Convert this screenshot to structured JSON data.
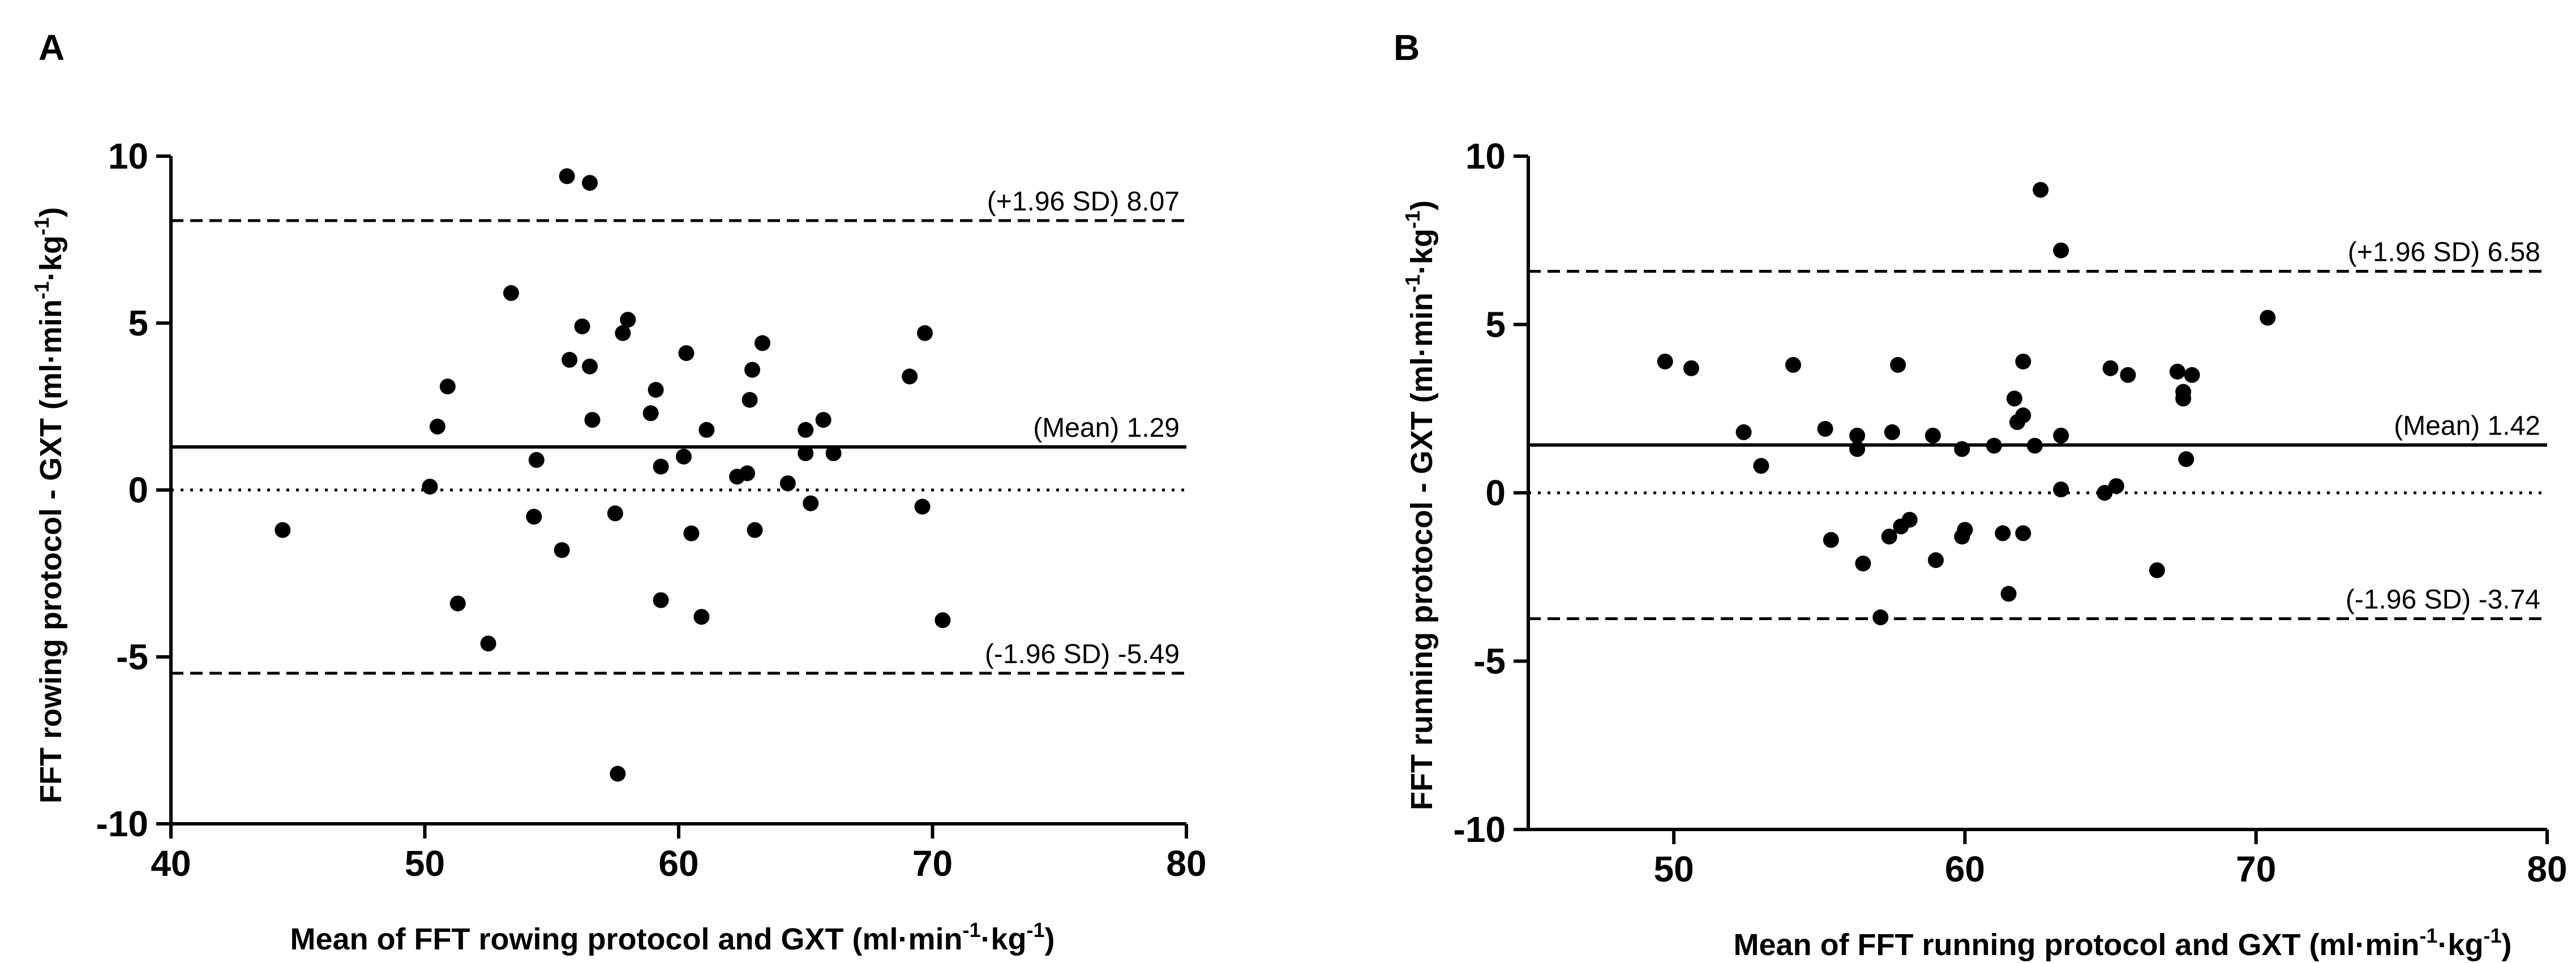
{
  "chart_data": [
    {
      "type": "scatter",
      "panel": "A",
      "xlabel": "Mean of FFT rowing protocol and GXT (ml·min-1·kg-1)",
      "xlabel_parts": [
        "Mean of FFT rowing protocol and GXT (ml·min",
        "-1",
        "·kg",
        "-1",
        ")"
      ],
      "ylabel": "FFT rowing protocol - GXT (ml·min-1·kg-1)",
      "ylabel_parts": [
        "FFT rowing protocol - GXT (ml·min",
        "-1",
        "·kg",
        "-1",
        ")"
      ],
      "xlim": [
        40,
        80
      ],
      "ylim": [
        -10,
        10
      ],
      "xticks": [
        40,
        50,
        60,
        70,
        80
      ],
      "yticks": [
        10,
        5,
        0,
        -5,
        -10
      ],
      "ytick_labels": [
        "10",
        "5",
        "0",
        "-5",
        "-10"
      ],
      "reference_lines": [
        {
          "kind": "upper-loa",
          "style": "dashed",
          "y": 8.07,
          "label": "(+1.96 SD) 8.07"
        },
        {
          "kind": "mean",
          "style": "solid",
          "y": 1.29,
          "label": "(Mean) 1.29"
        },
        {
          "kind": "zero",
          "style": "dotted",
          "y": 0,
          "label": ""
        },
        {
          "kind": "lower-loa",
          "style": "dashed",
          "y": -5.49,
          "label": "(-1.96 SD) -5.49"
        }
      ],
      "points": [
        [
          44.4,
          -1.2
        ],
        [
          50.2,
          0.1
        ],
        [
          50.5,
          1.9
        ],
        [
          50.9,
          3.1
        ],
        [
          51.3,
          -3.4
        ],
        [
          52.5,
          -4.6
        ],
        [
          53.4,
          5.9
        ],
        [
          54.3,
          -0.8
        ],
        [
          54.4,
          0.9
        ],
        [
          55.4,
          -1.8
        ],
        [
          55.6,
          9.4
        ],
        [
          55.7,
          3.9
        ],
        [
          56.2,
          4.9
        ],
        [
          56.5,
          3.7
        ],
        [
          56.5,
          9.2
        ],
        [
          56.6,
          2.1
        ],
        [
          57.5,
          -0.7
        ],
        [
          57.6,
          -8.5
        ],
        [
          57.8,
          4.7
        ],
        [
          58.0,
          5.1
        ],
        [
          58.9,
          2.3
        ],
        [
          59.1,
          3.0
        ],
        [
          59.3,
          -3.3
        ],
        [
          59.3,
          0.7
        ],
        [
          60.2,
          1.0
        ],
        [
          60.3,
          4.1
        ],
        [
          60.5,
          -1.3
        ],
        [
          60.9,
          -3.8
        ],
        [
          61.1,
          1.8
        ],
        [
          62.3,
          0.4
        ],
        [
          62.7,
          0.5
        ],
        [
          62.8,
          2.7
        ],
        [
          62.9,
          3.6
        ],
        [
          63.0,
          -1.2
        ],
        [
          63.3,
          4.4
        ],
        [
          64.3,
          0.2
        ],
        [
          65.0,
          1.1
        ],
        [
          65.0,
          1.8
        ],
        [
          65.2,
          -0.4
        ],
        [
          65.7,
          2.1
        ],
        [
          66.1,
          1.1
        ],
        [
          69.1,
          3.4
        ],
        [
          69.6,
          -0.5
        ],
        [
          69.7,
          4.7
        ],
        [
          70.4,
          -3.9
        ]
      ]
    },
    {
      "type": "scatter",
      "panel": "B",
      "xlabel": "Mean of FFT running protocol and GXT (ml·min-1·kg-1)",
      "xlabel_parts": [
        "Mean of FFT running protocol and GXT (ml·min",
        "-1",
        "·kg",
        "-1",
        ")"
      ],
      "ylabel": "FFT running protocol - GXT (ml·min-1·kg-1)",
      "ylabel_parts": [
        "FFT running protocol - GXT (ml·min",
        "-1",
        "·kg",
        "-1",
        ")"
      ],
      "xlim": [
        45,
        80
      ],
      "ylim": [
        -10,
        10
      ],
      "xticks": [
        50,
        60,
        70,
        80
      ],
      "yticks": [
        10,
        5,
        0,
        -5,
        -10
      ],
      "ytick_labels": [
        "10",
        "5",
        "0",
        "-5",
        "-10"
      ],
      "reference_lines": [
        {
          "kind": "upper-loa",
          "style": "dashed",
          "y": 6.58,
          "label": "(+1.96 SD) 6.58"
        },
        {
          "kind": "mean",
          "style": "solid",
          "y": 1.42,
          "label": "(Mean) 1.42"
        },
        {
          "kind": "zero",
          "style": "dotted",
          "y": 0,
          "label": ""
        },
        {
          "kind": "lower-loa",
          "style": "dashed",
          "y": -3.74,
          "label": "(-1.96 SD) -3.74"
        }
      ],
      "points": [
        [
          49.7,
          3.9
        ],
        [
          50.6,
          3.7
        ],
        [
          52.4,
          1.8
        ],
        [
          53.0,
          0.8
        ],
        [
          54.1,
          3.8
        ],
        [
          55.2,
          1.9
        ],
        [
          55.4,
          -1.4
        ],
        [
          56.3,
          1.3
        ],
        [
          56.3,
          1.7
        ],
        [
          56.5,
          -2.1
        ],
        [
          57.1,
          -3.7
        ],
        [
          57.4,
          -1.3
        ],
        [
          57.5,
          1.8
        ],
        [
          57.7,
          3.8
        ],
        [
          57.8,
          -1.0
        ],
        [
          58.1,
          -0.8
        ],
        [
          58.9,
          1.7
        ],
        [
          59.0,
          -2.0
        ],
        [
          59.9,
          1.3
        ],
        [
          59.9,
          -1.3
        ],
        [
          60.0,
          -1.1
        ],
        [
          61.0,
          1.4
        ],
        [
          61.3,
          -1.2
        ],
        [
          61.5,
          -3.0
        ],
        [
          61.7,
          2.8
        ],
        [
          61.8,
          2.1
        ],
        [
          62.0,
          -1.2
        ],
        [
          62.0,
          2.3
        ],
        [
          62.0,
          3.9
        ],
        [
          62.4,
          1.4
        ],
        [
          62.6,
          9.0
        ],
        [
          63.3,
          0.1
        ],
        [
          63.3,
          1.7
        ],
        [
          63.3,
          7.2
        ],
        [
          64.8,
          0.0
        ],
        [
          65.0,
          3.7
        ],
        [
          65.2,
          0.2
        ],
        [
          65.6,
          3.5
        ],
        [
          66.6,
          -2.3
        ],
        [
          67.3,
          3.6
        ],
        [
          67.5,
          3.0
        ],
        [
          67.5,
          2.8
        ],
        [
          67.6,
          1.0
        ],
        [
          67.8,
          3.5
        ],
        [
          70.4,
          5.2
        ]
      ]
    }
  ]
}
